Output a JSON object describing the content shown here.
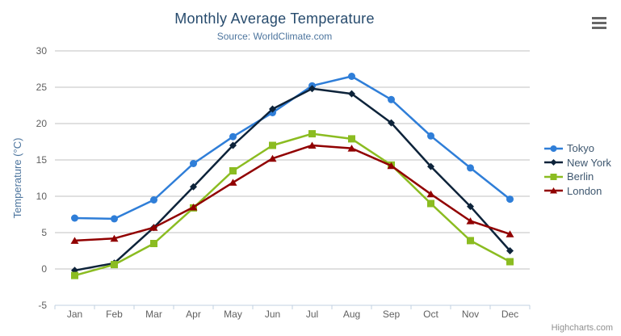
{
  "credit": "Highcharts.com",
  "chart_data": {
    "type": "line",
    "title": "Monthly Average Temperature",
    "subtitle": "Source: WorldClimate.com",
    "categories": [
      "Jan",
      "Feb",
      "Mar",
      "Apr",
      "May",
      "Jun",
      "Jul",
      "Aug",
      "Sep",
      "Oct",
      "Nov",
      "Dec"
    ],
    "xlabel": "",
    "ylabel": "Temperature (°C)",
    "ylim": [
      -5,
      30
    ],
    "ytick_step": 5,
    "grid": true,
    "legend_position": "right",
    "series": [
      {
        "name": "Tokyo",
        "color": "#2f7ed8",
        "marker": "circle",
        "values": [
          7.0,
          6.9,
          9.5,
          14.5,
          18.2,
          21.5,
          25.2,
          26.5,
          23.3,
          18.3,
          13.9,
          9.6
        ]
      },
      {
        "name": "New York",
        "color": "#0d233a",
        "marker": "diamond",
        "values": [
          -0.2,
          0.8,
          5.7,
          11.3,
          17.0,
          22.0,
          24.8,
          24.1,
          20.1,
          14.1,
          8.6,
          2.5
        ]
      },
      {
        "name": "Berlin",
        "color": "#8bbc21",
        "marker": "square",
        "values": [
          -0.9,
          0.6,
          3.5,
          8.4,
          13.5,
          17.0,
          18.6,
          17.9,
          14.3,
          9.0,
          3.9,
          1.0
        ]
      },
      {
        "name": "London",
        "color": "#910000",
        "marker": "triangle",
        "values": [
          3.9,
          4.2,
          5.7,
          8.5,
          11.9,
          15.2,
          17.0,
          16.6,
          14.2,
          10.3,
          6.6,
          4.8
        ]
      }
    ]
  },
  "colors": {
    "title": "#274b6d",
    "subtitle": "#4d759e",
    "axis_title": "#4d759e",
    "tick_label": "#606060",
    "gridline": "#c0c0c0",
    "axis_line": "#c0d0e0",
    "legend_text": "#3e576f",
    "credit": "#909090",
    "menu_icon": "#666666",
    "background": "#ffffff"
  }
}
